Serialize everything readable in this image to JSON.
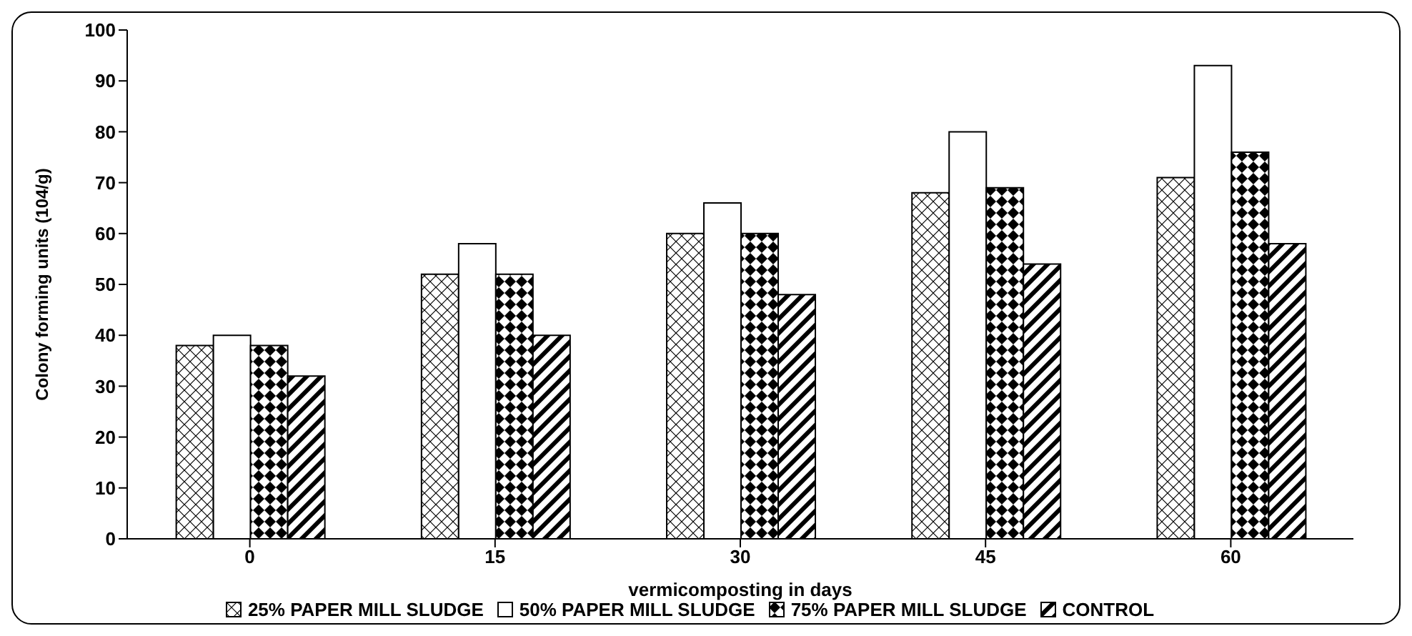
{
  "chart_data": {
    "type": "bar",
    "xlabel": "vermicomposting in days",
    "ylabel": "Colony forming units (104/g)",
    "categories": [
      "0",
      "15",
      "30",
      "45",
      "60"
    ],
    "series": [
      {
        "name": "25% PAPER MILL SLUDGE",
        "color": "#000000",
        "values": [
          38,
          52,
          60,
          68,
          71
        ]
      },
      {
        "name": "50% PAPER MILL SLUDGE",
        "color": "#ffffff",
        "values": [
          40,
          58,
          66,
          80,
          93
        ]
      },
      {
        "name": "75% PAPER MILL SLUDGE",
        "color": "#000000",
        "values": [
          38,
          52,
          60,
          69,
          76
        ]
      },
      {
        "name": "CONTROL",
        "color": "#000000",
        "values": [
          32,
          40,
          48,
          54,
          58
        ]
      }
    ],
    "ylim": [
      0,
      100
    ],
    "yticks": [
      0,
      10,
      20,
      30,
      40,
      50,
      60,
      70,
      80,
      90,
      100
    ],
    "grid": false,
    "legend": "bottom"
  }
}
